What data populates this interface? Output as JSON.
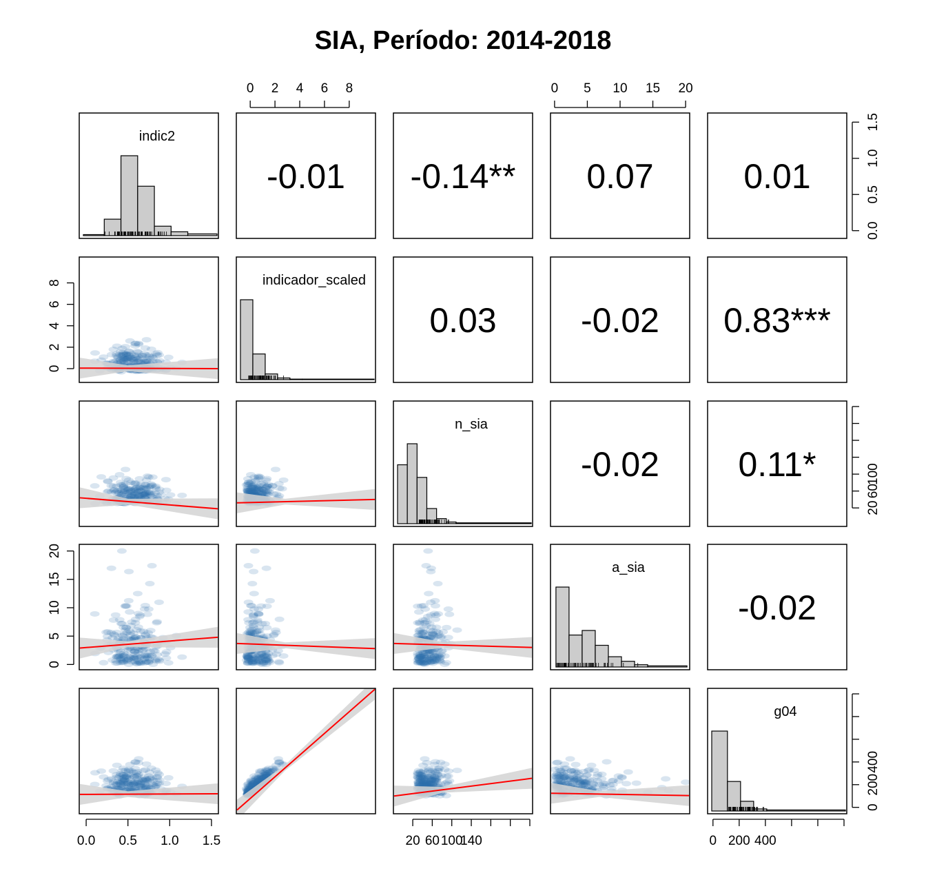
{
  "chart_data": {
    "type": "scatter-matrix",
    "title": "SIA, Período: 2014-2018",
    "variables": [
      "indic2",
      "indicador_scaled",
      "n_sia",
      "a_sia",
      "g04"
    ],
    "axes": {
      "indic2": {
        "range": [
          -0.05,
          1.55
        ],
        "ticks": [
          0.0,
          0.5,
          1.0,
          1.5
        ],
        "tick_labels": [
          "0.0",
          "0.5",
          "1.0",
          "1.5"
        ],
        "hist_breaks": [
          -0.05,
          0.2,
          0.4,
          0.6,
          0.8,
          1.0,
          1.2,
          1.55
        ],
        "hist_counts": [
          3,
          47,
          228,
          141,
          27,
          11,
          5
        ]
      },
      "indicador_scaled": {
        "range": [
          -0.9,
          9.9
        ],
        "ticks": [
          0,
          2,
          4,
          6,
          8
        ],
        "tick_labels": [
          "0",
          "2",
          "4",
          "6",
          "8"
        ],
        "hist_breaks": [
          -0.9,
          0.1,
          1.1,
          2.1,
          3.1,
          4.1,
          9.9
        ],
        "hist_counts": [
          140,
          45,
          10,
          3,
          1,
          1
        ]
      },
      "n_sia": {
        "range": [
          3,
          140
        ],
        "ticks": [
          20,
          40,
          60,
          80,
          100,
          120,
          140
        ],
        "tick_labels": [
          "20",
          "",
          "60",
          "",
          "100",
          "",
          "140"
        ],
        "hist_breaks": [
          3,
          13,
          23,
          33,
          43,
          53,
          63,
          140
        ],
        "hist_counts": [
          70,
          95,
          55,
          18,
          6,
          2,
          1
        ]
      },
      "a_sia": {
        "range": [
          -0.2,
          20.2
        ],
        "ticks": [
          0,
          5,
          10,
          15,
          20
        ],
        "tick_labels": [
          "0",
          "5",
          "10",
          "15",
          "20"
        ],
        "hist_breaks": [
          0,
          2,
          4,
          6,
          8,
          10,
          12,
          14,
          20
        ],
        "hist_counts": [
          70,
          28,
          32,
          19,
          9,
          5,
          2,
          1
        ]
      },
      "g04": {
        "range": [
          -10,
          500
        ],
        "ticks": [
          0,
          100,
          200,
          300,
          400,
          500
        ],
        "tick_labels": [
          "0",
          "",
          "200",
          "",
          "400",
          ""
        ],
        "hist_breaks": [
          -10,
          50,
          100,
          150,
          200,
          500
        ],
        "hist_counts": [
          230,
          85,
          28,
          6,
          3
        ]
      }
    },
    "side_ticks": {
      "top": {
        "indicador_scaled": [
          "0",
          "2",
          "4",
          "6",
          "8"
        ],
        "a_sia": [
          "0",
          "5",
          "10",
          "15",
          "20"
        ]
      },
      "right": {
        "indic2": [
          "0.0",
          "0.5",
          "1.0",
          "1.5"
        ],
        "n_sia": [
          "20",
          "60",
          "100"
        ],
        "g04": [
          "0",
          "200",
          "400"
        ]
      },
      "left": {
        "indicador_scaled": [
          "0",
          "2",
          "4",
          "6",
          "8"
        ],
        "a_sia": [
          "0",
          "5",
          "10",
          "15",
          "20"
        ]
      },
      "bottom": {
        "indic2": [
          "0.0",
          "0.5",
          "1.0",
          "1.5"
        ],
        "n_sia": [
          "20",
          "60",
          "100",
          "140"
        ],
        "g04": [
          "0",
          "200",
          "400"
        ]
      }
    },
    "correlations": [
      {
        "row": 0,
        "col": 1,
        "text": "-0.01"
      },
      {
        "row": 0,
        "col": 2,
        "text": "-0.14**"
      },
      {
        "row": 0,
        "col": 3,
        "text": "0.07"
      },
      {
        "row": 0,
        "col": 4,
        "text": "0.01"
      },
      {
        "row": 1,
        "col": 2,
        "text": "0.03"
      },
      {
        "row": 1,
        "col": 3,
        "text": "-0.02"
      },
      {
        "row": 1,
        "col": 4,
        "text": "0.83***"
      },
      {
        "row": 2,
        "col": 3,
        "text": "-0.02"
      },
      {
        "row": 2,
        "col": 4,
        "text": "0.11*"
      },
      {
        "row": 3,
        "col": 4,
        "text": "-0.02"
      }
    ],
    "regressions": [
      {
        "row": 1,
        "col": 0,
        "y_at_xmin": 0.05,
        "y_at_xmax": 0.0
      },
      {
        "row": 2,
        "col": 0,
        "y_at_xmin": 32,
        "y_at_xmax": 19
      },
      {
        "row": 2,
        "col": 1,
        "y_at_xmin": 26,
        "y_at_xmax": 30
      },
      {
        "row": 3,
        "col": 0,
        "y_at_xmin": 2.9,
        "y_at_xmax": 4.8
      },
      {
        "row": 3,
        "col": 1,
        "y_at_xmin": 3.7,
        "y_at_xmax": 2.8
      },
      {
        "row": 3,
        "col": 2,
        "y_at_xmin": 3.7,
        "y_at_xmax": 3.0
      },
      {
        "row": 4,
        "col": 0,
        "y_at_xmin": 57,
        "y_at_xmax": 60
      },
      {
        "row": 4,
        "col": 1,
        "y_at_xmin": -12,
        "y_at_xmax": 520
      },
      {
        "row": 4,
        "col": 2,
        "y_at_xmin": 50,
        "y_at_xmax": 128
      },
      {
        "row": 4,
        "col": 3,
        "y_at_xmin": 62,
        "y_at_xmax": 52
      }
    ],
    "colors": {
      "point": "#2b6fae",
      "regression": "#ff0000",
      "ci_band": "#d3d3d3",
      "histogram_fill": "#cccccc",
      "frame": "#000000"
    },
    "grid": false,
    "legend": "none"
  }
}
